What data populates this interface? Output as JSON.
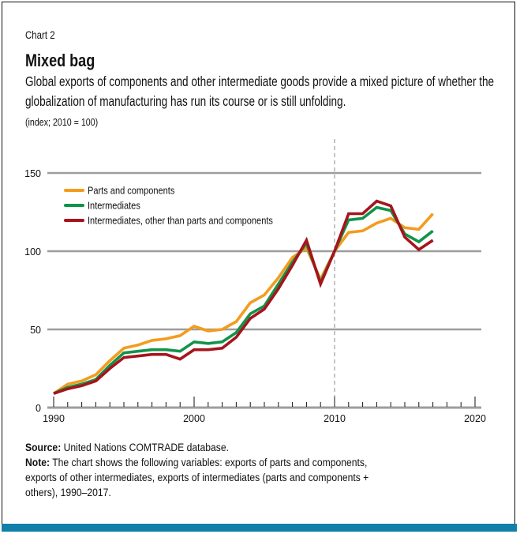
{
  "header": {
    "chart_label": "Chart 2",
    "title": "Mixed bag",
    "subtitle": "Global exports of components and other intermediate goods provide a mixed picture of whether the globalization of manufacturing has run its course or is still unfolding.",
    "units": "(index; 2010 = 100)"
  },
  "footer": {
    "source_label": "Source:",
    "source_text": " United Nations COMTRADE database.",
    "note_label": "Note:",
    "note_line_1": " The chart shows the following variables: exports of parts and components,",
    "note_line_2": "exports of other intermediates, exports of intermediates (parts and components +",
    "note_line_3": "others), 1990–2017."
  },
  "colors": {
    "parts": "#f39c1f",
    "intermediates": "#12934a",
    "other": "#a6141c",
    "grid": "#9d9d9d",
    "bottom_bar": "#117fa8"
  },
  "chart_data": {
    "type": "line",
    "title": "Mixed bag",
    "xlabel": "",
    "ylabel": "index; 2010 = 100",
    "xlim": [
      1990,
      2020
    ],
    "ylim": [
      0,
      150
    ],
    "x_ticks": [
      1990,
      2000,
      2010,
      2020
    ],
    "y_ticks": [
      0,
      50,
      100,
      150
    ],
    "grid": "horizontal",
    "reference_line": {
      "x": 2010,
      "style": "dashed"
    },
    "legend_position": "top-left",
    "x": [
      1990,
      1991,
      1992,
      1993,
      1994,
      1995,
      1996,
      1997,
      1998,
      1999,
      2000,
      2001,
      2002,
      2003,
      2004,
      2005,
      2006,
      2007,
      2008,
      2009,
      2010,
      2011,
      2012,
      2013,
      2014,
      2015,
      2016,
      2017
    ],
    "series": [
      {
        "name": "Parts and components",
        "color_key": "parts",
        "values": [
          9,
          15,
          17,
          21,
          30,
          38,
          40,
          43,
          44,
          46,
          52,
          49,
          50,
          55,
          67,
          72,
          83,
          96,
          102,
          82,
          100,
          112,
          113,
          118,
          121,
          115,
          114,
          124
        ]
      },
      {
        "name": "Intermediates",
        "color_key": "intermediates",
        "values": [
          9,
          13,
          15,
          18,
          27,
          35,
          36,
          37,
          37,
          36,
          42,
          41,
          42,
          48,
          60,
          65,
          79,
          93,
          105,
          80,
          100,
          120,
          121,
          128,
          126,
          111,
          106,
          113
        ]
      },
      {
        "name": "Intermediates, other than parts and components",
        "color_key": "other",
        "values": [
          9,
          12,
          14,
          17,
          25,
          32,
          33,
          34,
          34,
          31,
          37,
          37,
          38,
          45,
          57,
          63,
          76,
          91,
          107,
          79,
          100,
          124,
          124,
          132,
          129,
          109,
          101,
          107
        ]
      }
    ]
  }
}
